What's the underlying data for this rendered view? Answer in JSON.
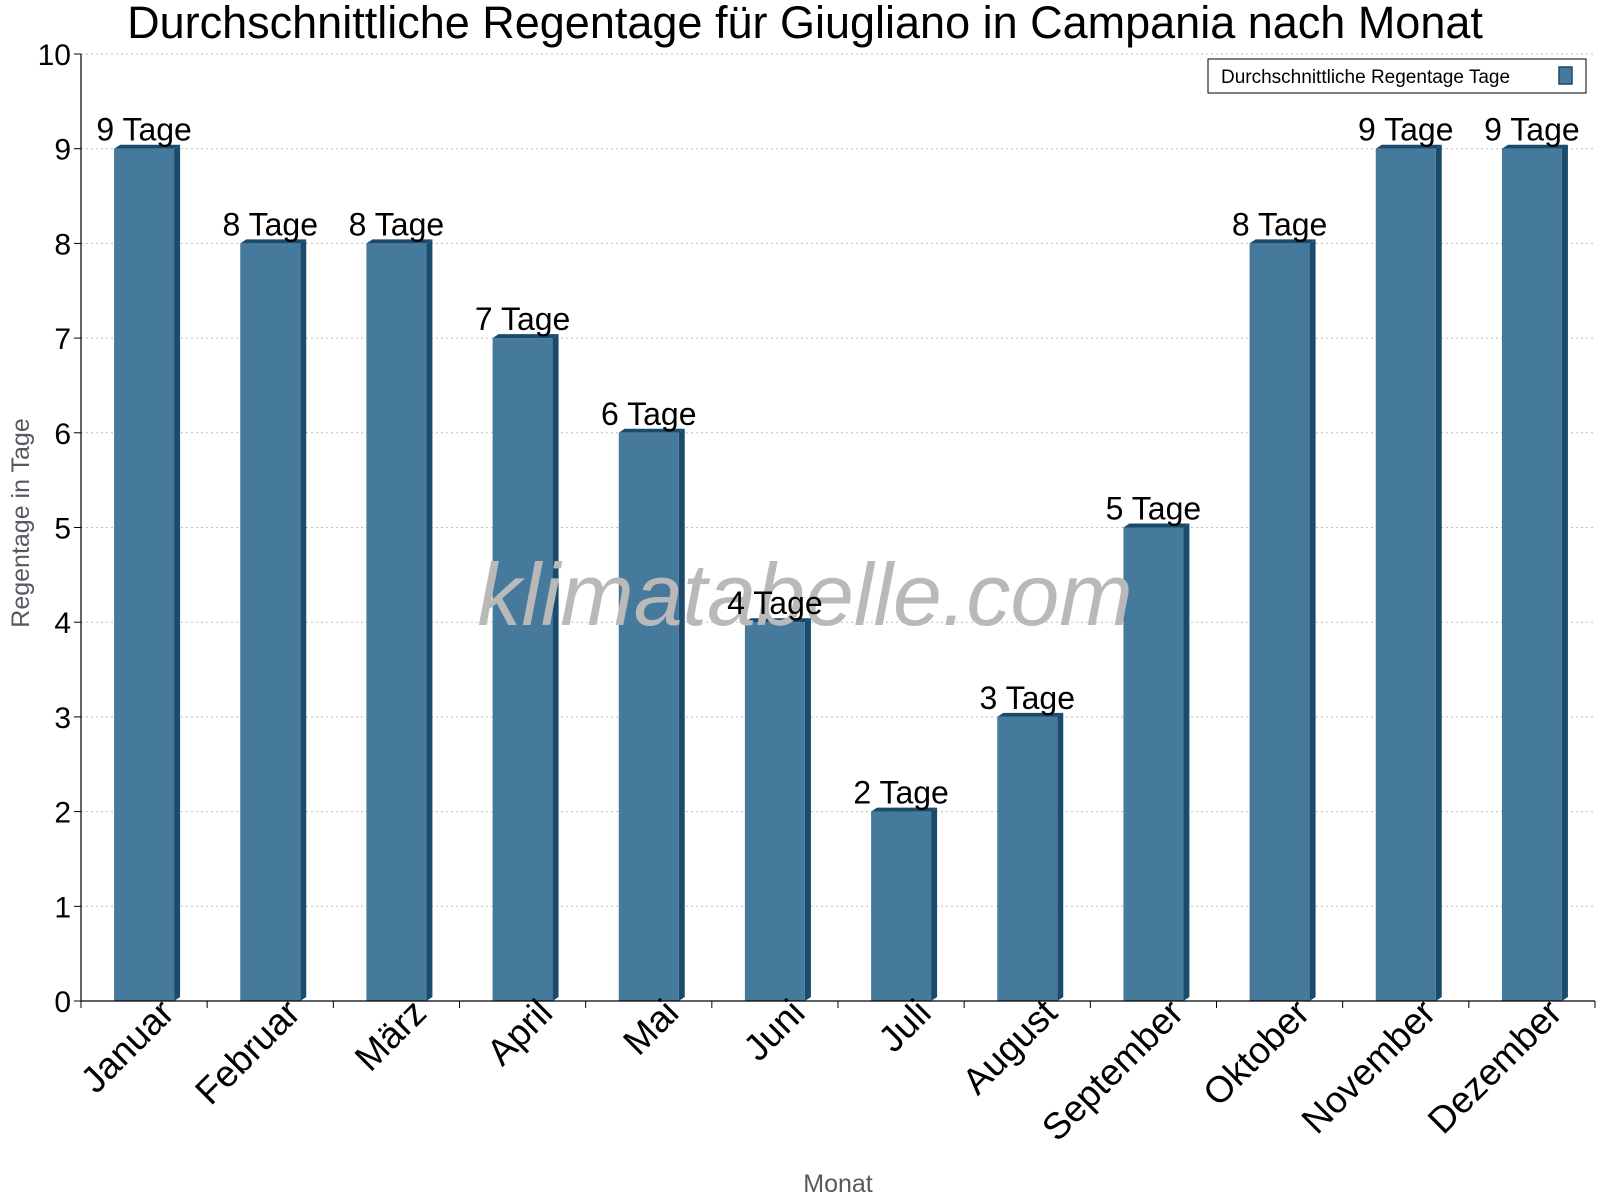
{
  "chart_data": {
    "type": "bar",
    "title": "Durchschnittliche Regentage für Giugliano in Campania nach Monat",
    "xlabel": "Monat",
    "ylabel": "Regentage in Tage",
    "ylim": [
      0,
      10
    ],
    "yticks": [
      "0",
      "1",
      "2",
      "3",
      "4",
      "5",
      "6",
      "7",
      "8",
      "9",
      "10"
    ],
    "grid": true,
    "legend_position": "top-right",
    "watermark": "klimatabelle.com",
    "categories": [
      "Januar",
      "Februar",
      "März",
      "April",
      "Mai",
      "Juni",
      "Juli",
      "August",
      "September",
      "Oktober",
      "November",
      "Dezember"
    ],
    "series": [
      {
        "name": "Durchschnittliche Regentage Tage",
        "color": "#467a9c",
        "values": [
          9,
          8,
          8,
          7,
          6,
          4,
          2,
          3,
          5,
          8,
          9,
          9
        ],
        "labels": [
          "9 Tage",
          "8 Tage",
          "8 Tage",
          "7 Tage",
          "6 Tage",
          "4 Tage",
          "2 Tage",
          "3 Tage",
          "5 Tage",
          "8 Tage",
          "9 Tage",
          "9 Tage"
        ]
      }
    ]
  }
}
